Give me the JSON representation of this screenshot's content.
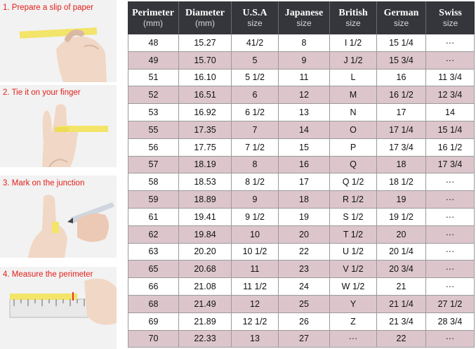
{
  "steps": [
    {
      "label": "1. Prepare a slip of paper",
      "icon": "paper-slip-icon"
    },
    {
      "label": "2. Tie it on your finger",
      "icon": "finger-wrap-icon"
    },
    {
      "label": "3. Mark on the junction",
      "icon": "pen-mark-icon"
    },
    {
      "label": "4. Measure the perimeter",
      "icon": "ruler-icon"
    }
  ],
  "table": {
    "headers": [
      {
        "title": "Perimeter",
        "sub": "(mm)"
      },
      {
        "title": "Diameter",
        "sub": "(mm)"
      },
      {
        "title": "U.S.A",
        "sub": "size"
      },
      {
        "title": "Japanese",
        "sub": "size"
      },
      {
        "title": "British",
        "sub": "size"
      },
      {
        "title": "German",
        "sub": "size"
      },
      {
        "title": "Swiss",
        "sub": "size"
      }
    ],
    "rows": [
      [
        "48",
        "15.27",
        "41/2",
        "8",
        "I 1/2",
        "15 1/4",
        "···"
      ],
      [
        "49",
        "15.70",
        "5",
        "9",
        "J 1/2",
        "15 3/4",
        "···"
      ],
      [
        "51",
        "16.10",
        "5 1/2",
        "11",
        "L",
        "16",
        "11 3/4"
      ],
      [
        "52",
        "16.51",
        "6",
        "12",
        "M",
        "16 1/2",
        "12 3/4"
      ],
      [
        "53",
        "16.92",
        "6 1/2",
        "13",
        "N",
        "17",
        "14"
      ],
      [
        "55",
        "17.35",
        "7",
        "14",
        "O",
        "17 1/4",
        "15 1/4"
      ],
      [
        "56",
        "17.75",
        "7 1/2",
        "15",
        "P",
        "17 3/4",
        "16 1/2"
      ],
      [
        "57",
        "18.19",
        "8",
        "16",
        "Q",
        "18",
        "17 3/4"
      ],
      [
        "58",
        "18.53",
        "8 1/2",
        "17",
        "Q  1/2",
        "18 1/2",
        "···"
      ],
      [
        "59",
        "18.89",
        "9",
        "18",
        "R 1/2",
        "19",
        "···"
      ],
      [
        "61",
        "19.41",
        "9 1/2",
        "19",
        "S 1/2",
        "19 1/2",
        "···"
      ],
      [
        "62",
        "19.84",
        "10",
        "20",
        "T 1/2",
        "20",
        "···"
      ],
      [
        "63",
        "20.20",
        "10 1/2",
        "22",
        "U 1/2",
        "20 1/4",
        "···"
      ],
      [
        "65",
        "20.68",
        "11",
        "23",
        "V 1/2",
        "20 3/4",
        "···"
      ],
      [
        "66",
        "21.08",
        "11 1/2",
        "24",
        "W 1/2",
        "21",
        "···"
      ],
      [
        "68",
        "21.49",
        "12",
        "25",
        "Y",
        "21 1/4",
        "27 1/2"
      ],
      [
        "69",
        "21.89",
        "12 1/2",
        "26",
        "Z",
        "21 3/4",
        "28 3/4"
      ],
      [
        "70",
        "22.33",
        "13",
        "27",
        "···",
        "22",
        "···"
      ]
    ]
  },
  "colors": {
    "header_bg": "#34363b",
    "row_alt": "#dcc6cb",
    "step_label": "#e0201b"
  }
}
